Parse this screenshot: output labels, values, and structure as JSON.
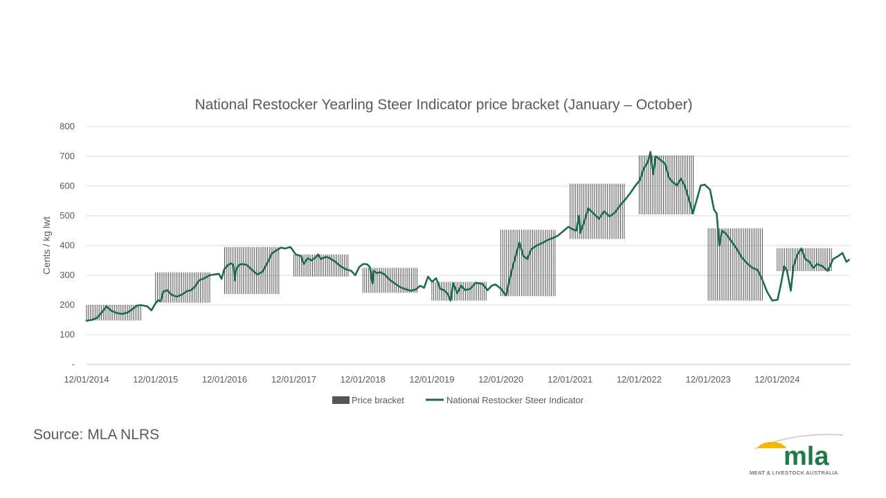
{
  "chart_data": {
    "type": "line",
    "title": "National Restocker Yearling Steer Indicator price bracket (January – October)",
    "xlabel": "",
    "ylabel": "Cents / kg lwt",
    "ylim": [
      0,
      800
    ],
    "y_ticks": [
      "-",
      "100",
      "200",
      "300",
      "400",
      "500",
      "600",
      "700",
      "800"
    ],
    "x_ticks": [
      "12/01/2014",
      "12/01/2015",
      "12/01/2016",
      "12/01/2017",
      "12/01/2018",
      "12/01/2019",
      "12/01/2020",
      "12/01/2021",
      "12/01/2022",
      "12/01/2023",
      "12/01/2024"
    ],
    "grid": true,
    "legend_position": "bottom",
    "series": [
      {
        "name": "Price bracket",
        "kind": "range-bar",
        "color": "#404040",
        "brackets": [
          {
            "year": "2014",
            "low": 148,
            "high": 200
          },
          {
            "year": "2015",
            "low": 208,
            "high": 310
          },
          {
            "year": "2016",
            "low": 237,
            "high": 395
          },
          {
            "year": "2017",
            "low": 296,
            "high": 370
          },
          {
            "year": "2018",
            "low": 241,
            "high": 325
          },
          {
            "year": "2019",
            "low": 215,
            "high": 278
          },
          {
            "year": "2020",
            "low": 230,
            "high": 453
          },
          {
            "year": "2021",
            "low": 422,
            "high": 608
          },
          {
            "year": "2022",
            "low": 505,
            "high": 703
          },
          {
            "year": "2023",
            "low": 215,
            "high": 458
          },
          {
            "year": "2024",
            "low": 314,
            "high": 391
          }
        ]
      },
      {
        "name": "National Restocker Steer Indicator",
        "kind": "line",
        "color": "#1a6b47",
        "points": [
          [
            "2014-01-12",
            147
          ],
          [
            "2014-02-09",
            150
          ],
          [
            "2014-03-09",
            157
          ],
          [
            "2014-04-06",
            178
          ],
          [
            "2014-04-27",
            195
          ],
          [
            "2014-05-25",
            180
          ],
          [
            "2014-06-22",
            173
          ],
          [
            "2014-07-20",
            170
          ],
          [
            "2014-08-17",
            175
          ],
          [
            "2014-09-14",
            187
          ],
          [
            "2014-10-05",
            198
          ],
          [
            "2014-10-26",
            200
          ],
          [
            "2014-11-30",
            195
          ],
          [
            "2014-12-21",
            182
          ],
          [
            "2015-01-11",
            205
          ],
          [
            "2015-01-25",
            216
          ],
          [
            "2015-02-08",
            213
          ],
          [
            "2015-02-22",
            245
          ],
          [
            "2015-03-15",
            250
          ],
          [
            "2015-04-05",
            235
          ],
          [
            "2015-05-03",
            228
          ],
          [
            "2015-05-31",
            235
          ],
          [
            "2015-06-28",
            247
          ],
          [
            "2015-07-19",
            250
          ],
          [
            "2015-08-09",
            262
          ],
          [
            "2015-08-30",
            283
          ],
          [
            "2015-09-27",
            290
          ],
          [
            "2015-10-25",
            300
          ],
          [
            "2015-11-22",
            303
          ],
          [
            "2015-12-13",
            305
          ],
          [
            "2015-12-27",
            288
          ],
          [
            "2016-01-10",
            320
          ],
          [
            "2016-01-31",
            335
          ],
          [
            "2016-02-14",
            340
          ],
          [
            "2016-02-28",
            335
          ],
          [
            "2016-03-06",
            283
          ],
          [
            "2016-03-13",
            320
          ],
          [
            "2016-03-27",
            334
          ],
          [
            "2016-04-10",
            338
          ],
          [
            "2016-05-08",
            335
          ],
          [
            "2016-06-05",
            318
          ],
          [
            "2016-07-03",
            303
          ],
          [
            "2016-07-31",
            312
          ],
          [
            "2016-08-28",
            345
          ],
          [
            "2016-09-18",
            374
          ],
          [
            "2016-10-16",
            385
          ],
          [
            "2016-11-06",
            393
          ],
          [
            "2016-11-27",
            390
          ],
          [
            "2016-12-25",
            395
          ],
          [
            "2017-01-08",
            383
          ],
          [
            "2017-01-22",
            370
          ],
          [
            "2017-02-19",
            365
          ],
          [
            "2017-03-05",
            338
          ],
          [
            "2017-03-26",
            357
          ],
          [
            "2017-04-16",
            350
          ],
          [
            "2017-05-07",
            360
          ],
          [
            "2017-05-21",
            370
          ],
          [
            "2017-06-04",
            355
          ],
          [
            "2017-07-02",
            362
          ],
          [
            "2017-07-23",
            357
          ],
          [
            "2017-08-20",
            345
          ],
          [
            "2017-09-17",
            330
          ],
          [
            "2017-10-15",
            320
          ],
          [
            "2017-11-12",
            315
          ],
          [
            "2017-12-03",
            300
          ],
          [
            "2017-12-24",
            328
          ],
          [
            "2018-01-14",
            338
          ],
          [
            "2018-02-04",
            337
          ],
          [
            "2018-02-18",
            328
          ],
          [
            "2018-03-04",
            272
          ],
          [
            "2018-03-11",
            315
          ],
          [
            "2018-03-25",
            308
          ],
          [
            "2018-04-15",
            310
          ],
          [
            "2018-05-06",
            303
          ],
          [
            "2018-06-03",
            285
          ],
          [
            "2018-07-01",
            272
          ],
          [
            "2018-07-29",
            260
          ],
          [
            "2018-08-26",
            253
          ],
          [
            "2018-09-23",
            248
          ],
          [
            "2018-10-21",
            253
          ],
          [
            "2018-11-11",
            265
          ],
          [
            "2018-12-02",
            258
          ],
          [
            "2018-12-23",
            295
          ],
          [
            "2019-01-13",
            278
          ],
          [
            "2019-02-03",
            290
          ],
          [
            "2019-02-17",
            270
          ],
          [
            "2019-02-24",
            255
          ],
          [
            "2019-03-17",
            250
          ],
          [
            "2019-04-07",
            237
          ],
          [
            "2019-04-21",
            215
          ],
          [
            "2019-05-05",
            273
          ],
          [
            "2019-05-26",
            240
          ],
          [
            "2019-06-16",
            265
          ],
          [
            "2019-07-07",
            250
          ],
          [
            "2019-08-04",
            255
          ],
          [
            "2019-09-01",
            275
          ],
          [
            "2019-10-06",
            271
          ],
          [
            "2019-11-03",
            250
          ],
          [
            "2019-11-24",
            265
          ],
          [
            "2019-12-15",
            269
          ],
          [
            "2020-01-12",
            255
          ],
          [
            "2020-02-09",
            232
          ],
          [
            "2020-02-23",
            275
          ],
          [
            "2020-03-15",
            330
          ],
          [
            "2020-04-05",
            378
          ],
          [
            "2020-04-19",
            410
          ],
          [
            "2020-05-10",
            365
          ],
          [
            "2020-05-31",
            355
          ],
          [
            "2020-06-21",
            388
          ],
          [
            "2020-07-19",
            400
          ],
          [
            "2020-08-16",
            408
          ],
          [
            "2020-09-13",
            418
          ],
          [
            "2020-10-11",
            425
          ],
          [
            "2020-11-08",
            433
          ],
          [
            "2020-12-06",
            448
          ],
          [
            "2021-01-03",
            463
          ],
          [
            "2021-01-24",
            455
          ],
          [
            "2021-02-14",
            450
          ],
          [
            "2021-02-28",
            500
          ],
          [
            "2021-03-07",
            443
          ],
          [
            "2021-03-28",
            480
          ],
          [
            "2021-04-18",
            525
          ],
          [
            "2021-05-16",
            508
          ],
          [
            "2021-06-13",
            490
          ],
          [
            "2021-07-11",
            515
          ],
          [
            "2021-08-08",
            498
          ],
          [
            "2021-09-05",
            510
          ],
          [
            "2021-10-03",
            535
          ],
          [
            "2021-10-31",
            555
          ],
          [
            "2021-11-28",
            578
          ],
          [
            "2021-12-19",
            598
          ],
          [
            "2022-01-16",
            620
          ],
          [
            "2022-02-06",
            660
          ],
          [
            "2022-02-27",
            680
          ],
          [
            "2022-03-13",
            715
          ],
          [
            "2022-03-27",
            640
          ],
          [
            "2022-04-10",
            700
          ],
          [
            "2022-05-01",
            690
          ],
          [
            "2022-05-29",
            675
          ],
          [
            "2022-06-19",
            628
          ],
          [
            "2022-07-10",
            612
          ],
          [
            "2022-07-31",
            602
          ],
          [
            "2022-08-21",
            625
          ],
          [
            "2022-09-11",
            600
          ],
          [
            "2022-10-02",
            555
          ],
          [
            "2022-10-23",
            508
          ],
          [
            "2022-11-13",
            555
          ],
          [
            "2022-12-04",
            602
          ],
          [
            "2022-12-25",
            605
          ],
          [
            "2023-01-22",
            588
          ],
          [
            "2023-02-12",
            520
          ],
          [
            "2023-02-26",
            508
          ],
          [
            "2023-03-12",
            400
          ],
          [
            "2023-03-26",
            450
          ],
          [
            "2023-04-16",
            440
          ],
          [
            "2023-05-14",
            415
          ],
          [
            "2023-06-11",
            390
          ],
          [
            "2023-07-09",
            360
          ],
          [
            "2023-08-06",
            340
          ],
          [
            "2023-09-03",
            325
          ],
          [
            "2023-10-01",
            318
          ],
          [
            "2023-10-22",
            290
          ],
          [
            "2023-11-19",
            245
          ],
          [
            "2023-12-17",
            215
          ],
          [
            "2024-01-14",
            218
          ],
          [
            "2024-02-04",
            280
          ],
          [
            "2024-02-18",
            330
          ],
          [
            "2024-03-03",
            318
          ],
          [
            "2024-03-24",
            248
          ],
          [
            "2024-04-07",
            330
          ],
          [
            "2024-04-28",
            370
          ],
          [
            "2024-05-19",
            390
          ],
          [
            "2024-06-09",
            355
          ],
          [
            "2024-06-30",
            345
          ],
          [
            "2024-07-21",
            325
          ],
          [
            "2024-08-11",
            338
          ],
          [
            "2024-09-08",
            330
          ],
          [
            "2024-10-06",
            315
          ],
          [
            "2024-11-03",
            355
          ],
          [
            "2024-12-01",
            365
          ],
          [
            "2024-12-22",
            375
          ],
          [
            "2025-01-12",
            345
          ],
          [
            "2025-01-26",
            352
          ]
        ]
      }
    ]
  },
  "legend": {
    "bracket_label": "Price bracket",
    "line_label": "National Restocker Steer Indicator"
  },
  "source": "Source: MLA NLRS",
  "logo": {
    "text": "mla",
    "subtitle": "MEAT & LIVESTOCK AUSTRALIA",
    "brand_green": "#1e7a4a",
    "sun_yellow": "#f5b800"
  }
}
